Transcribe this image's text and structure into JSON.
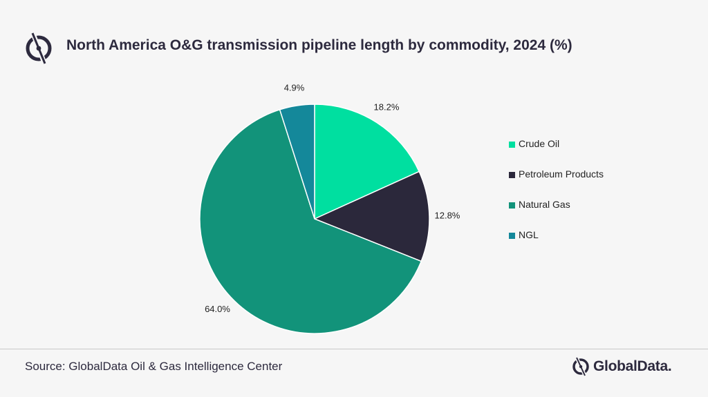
{
  "header": {
    "title": "North America O&G transmission pipeline length by commodity, 2024 (%)",
    "logo_icon": "globaldata-logo-icon"
  },
  "chart_data": {
    "type": "pie",
    "title": "North America O&G transmission pipeline length by commodity, 2024 (%)",
    "categories": [
      "Crude Oil",
      "Petroleum Products",
      "Natural Gas",
      "NGL"
    ],
    "values": [
      18.2,
      12.8,
      64.0,
      4.9
    ],
    "labels": [
      "18.2%",
      "12.8%",
      "64.0%",
      "4.9%"
    ],
    "colors": [
      "#00dfa0",
      "#2b283b",
      "#12937a",
      "#14889a"
    ],
    "start_angle_deg": 0,
    "direction": "clockwise",
    "legend_position": "right"
  },
  "footer": {
    "source": "Source: GlobalData Oil & Gas Intelligence Center",
    "brand_name": "GlobalData.",
    "brand_icon": "globaldata-logo-icon"
  }
}
